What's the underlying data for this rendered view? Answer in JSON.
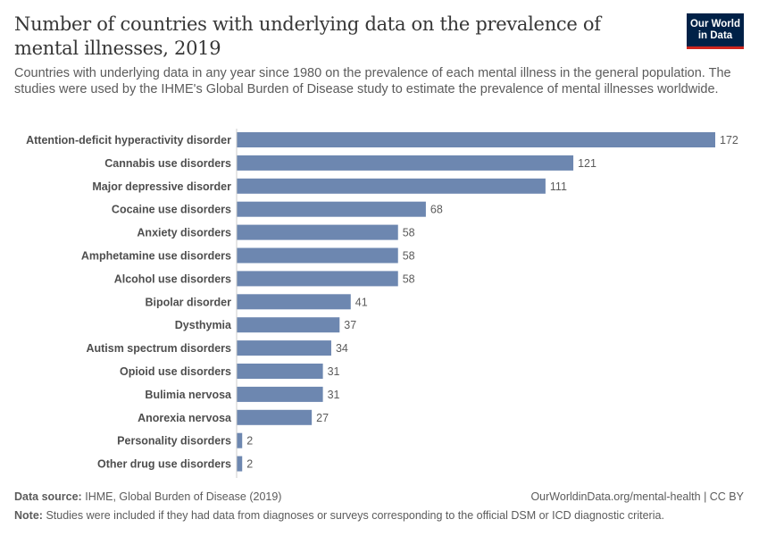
{
  "header": {
    "title": "Number of countries with underlying data on the prevalence of mental illnesses, 2019",
    "subtitle": "Countries with underlying data in any year since 1980 on the prevalence of each mental illness in the general population. The studies were used by the IHME's Global Burden of Disease study to estimate the prevalence of mental illnesses worldwide.",
    "logo_text": "Our World in Data"
  },
  "chart_data": {
    "type": "bar",
    "orientation": "horizontal",
    "title": "Number of countries with underlying data on the prevalence of mental illnesses, 2019",
    "categories": [
      "Attention-deficit hyperactivity disorder",
      "Cannabis use disorders",
      "Major depressive disorder",
      "Cocaine use disorders",
      "Anxiety disorders",
      "Amphetamine use disorders",
      "Alcohol use disorders",
      "Bipolar disorder",
      "Dysthymia",
      "Autism spectrum disorders",
      "Opioid use disorders",
      "Bulimia nervosa",
      "Anorexia nervosa",
      "Personality disorders",
      "Other drug use disorders"
    ],
    "values": [
      172,
      121,
      111,
      68,
      58,
      58,
      58,
      41,
      37,
      34,
      31,
      31,
      27,
      2,
      2
    ],
    "xlim": [
      0,
      172
    ],
    "grid": false,
    "bar_color": "#6d87b0"
  },
  "footer": {
    "source_label": "Data source:",
    "source": "IHME, Global Burden of Disease (2019)",
    "url": "OurWorldinData.org/mental-health | CC BY",
    "note_label": "Note:",
    "note": "Studies were included if they had data from diagnoses or surveys corresponding to the official DSM or ICD diagnostic criteria."
  }
}
